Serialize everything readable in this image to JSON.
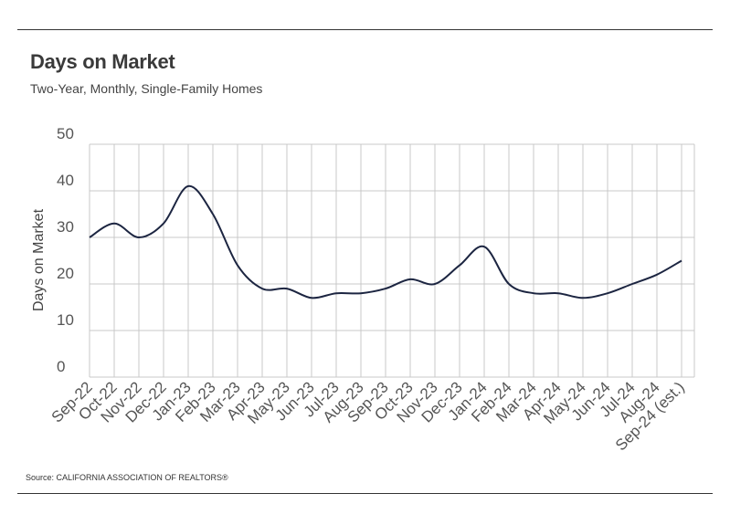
{
  "header": {
    "title": "Days on Market",
    "subtitle": "Two-Year, Monthly, Single-Family Homes"
  },
  "footer": {
    "source": "Source:  CALIFORNIA ASSOCIATION OF REALTORS®"
  },
  "chart_data": {
    "type": "line",
    "title": "Days on Market",
    "subtitle": "Two-Year, Monthly, Single-Family Homes",
    "xlabel": "",
    "ylabel": "Days on Market",
    "ylim": [
      0,
      50
    ],
    "yticks": [
      0,
      10,
      20,
      30,
      40,
      50
    ],
    "grid": true,
    "line_color": "#1c2541",
    "categories": [
      "Sep-22",
      "Oct-22",
      "Nov-22",
      "Dec-22",
      "Jan-23",
      "Feb-23",
      "Mar-23",
      "Apr-23",
      "May-23",
      "Jun-23",
      "Jul-23",
      "Aug-23",
      "Sep-23",
      "Oct-23",
      "Nov-23",
      "Dec-23",
      "Jan-24",
      "Feb-24",
      "Mar-24",
      "Apr-24",
      "May-24",
      "Jun-24",
      "Jul-24",
      "Aug-24",
      "Sep-24 (est.)"
    ],
    "series": [
      {
        "values": [
          30,
          33,
          30,
          33,
          41,
          35,
          24,
          19,
          19,
          17,
          18,
          18,
          19,
          21,
          20,
          24,
          28,
          20,
          18,
          18,
          17,
          18,
          20,
          22,
          25
        ]
      }
    ]
  }
}
